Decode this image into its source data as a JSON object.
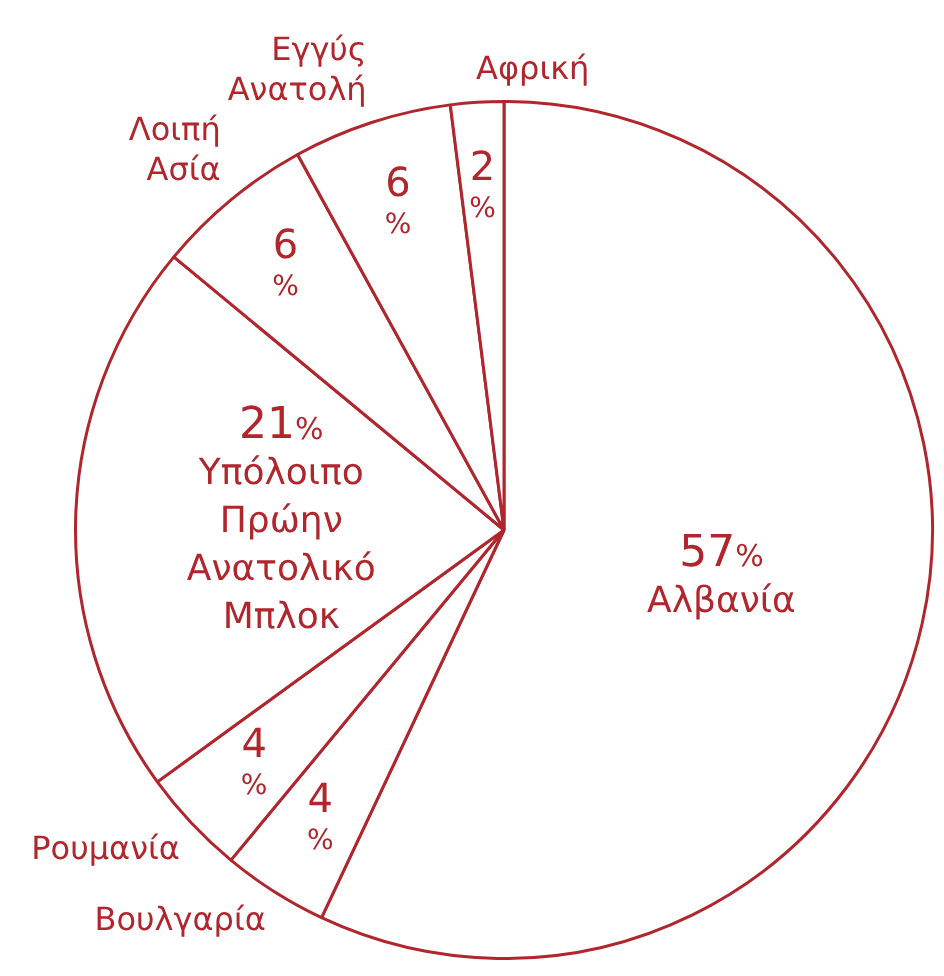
{
  "chart_data": {
    "type": "pie",
    "categories": [
      "Αλβανία",
      "Βουλγαρία",
      "Ρουμανία",
      "Υπόλοιπο Πρώην Ανατολικό Μπλοκ",
      "Λοιπή Ασία",
      "Εγγύς Ανατολή",
      "Αφρική"
    ],
    "values": [
      57,
      4,
      4,
      21,
      6,
      6,
      2
    ],
    "colors": [
      "#ffffff",
      "#ffffff",
      "#ffffff",
      "#ffffff",
      "#ffffff",
      "#ffffff",
      "#ffffff"
    ],
    "value_labels": [
      "57%",
      "4%",
      "4%",
      "21%",
      "6%",
      "6%",
      "2%"
    ],
    "legend": false
  }
}
